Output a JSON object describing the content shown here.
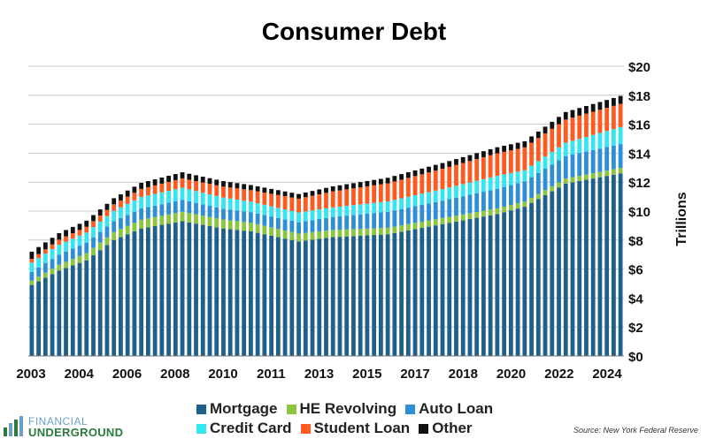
{
  "chart_data": {
    "type": "bar",
    "stacked": true,
    "title": "Consumer Debt",
    "ylabel": "Trillions",
    "ylim": [
      0,
      20
    ],
    "y_ticks": [
      "$0",
      "$2",
      "$4",
      "$6",
      "$8",
      "$10",
      "$12",
      "$14",
      "$16",
      "$18",
      "$20"
    ],
    "x_tick_labels": [
      "2003",
      "2004",
      "2006",
      "2008",
      "2010",
      "2011",
      "2013",
      "2015",
      "2017",
      "2018",
      "2020",
      "2022",
      "2024"
    ],
    "legend_position": "bottom",
    "anchors": [
      {
        "quarter": "2003Q1",
        "mortgage": 4.9,
        "he": 0.3,
        "auto": 0.6,
        "cc": 0.65,
        "student": 0.25,
        "other": 0.5
      },
      {
        "quarter": "2004Q1",
        "mortgage": 5.9,
        "he": 0.4,
        "auto": 0.7,
        "cc": 0.68,
        "student": 0.35,
        "other": 0.45
      },
      {
        "quarter": "2005Q1",
        "mortgage": 6.6,
        "he": 0.5,
        "auto": 0.72,
        "cc": 0.7,
        "student": 0.4,
        "other": 0.42
      },
      {
        "quarter": "2006Q1",
        "mortgage": 8.0,
        "he": 0.55,
        "auto": 0.75,
        "cc": 0.72,
        "student": 0.45,
        "other": 0.42
      },
      {
        "quarter": "2007Q1",
        "mortgage": 8.8,
        "he": 0.6,
        "auto": 0.78,
        "cc": 0.8,
        "student": 0.55,
        "other": 0.42
      },
      {
        "quarter": "2008Q3",
        "mortgage": 9.3,
        "he": 0.65,
        "auto": 0.82,
        "cc": 0.84,
        "student": 0.65,
        "other": 0.42
      },
      {
        "quarter": "2010Q1",
        "mortgage": 8.8,
        "he": 0.62,
        "auto": 0.74,
        "cc": 0.78,
        "student": 0.75,
        "other": 0.38
      },
      {
        "quarter": "2011Q1",
        "mortgage": 8.6,
        "he": 0.6,
        "auto": 0.73,
        "cc": 0.72,
        "student": 0.8,
        "other": 0.35
      },
      {
        "quarter": "2012Q4",
        "mortgage": 7.9,
        "he": 0.55,
        "auto": 0.78,
        "cc": 0.68,
        "student": 0.95,
        "other": 0.32
      },
      {
        "quarter": "2014Q1",
        "mortgage": 8.2,
        "he": 0.5,
        "auto": 0.9,
        "cc": 0.66,
        "student": 1.1,
        "other": 0.35
      },
      {
        "quarter": "2016Q1",
        "mortgage": 8.4,
        "he": 0.45,
        "auto": 1.1,
        "cc": 0.72,
        "student": 1.25,
        "other": 0.38
      },
      {
        "quarter": "2018Q1",
        "mortgage": 9.1,
        "he": 0.42,
        "auto": 1.2,
        "cc": 0.8,
        "student": 1.4,
        "other": 0.4
      },
      {
        "quarter": "2020Q1",
        "mortgage": 9.8,
        "he": 0.39,
        "auto": 1.35,
        "cc": 0.9,
        "student": 1.55,
        "other": 0.42
      },
      {
        "quarter": "2021Q1",
        "mortgage": 10.3,
        "he": 0.35,
        "auto": 1.4,
        "cc": 0.77,
        "student": 1.58,
        "other": 0.42
      },
      {
        "quarter": "2022Q3",
        "mortgage": 11.9,
        "he": 0.35,
        "auto": 1.55,
        "cc": 0.92,
        "student": 1.6,
        "other": 0.52
      },
      {
        "quarter": "2024Q3",
        "mortgage": 12.6,
        "he": 0.38,
        "auto": 1.65,
        "cc": 1.17,
        "student": 1.6,
        "other": 0.55
      }
    ],
    "series": [
      {
        "key": "mortgage",
        "name": "Mortgage",
        "color": "#1f5f8b"
      },
      {
        "key": "he",
        "name": "HE Revolving",
        "color": "#8cc63f"
      },
      {
        "key": "auto",
        "name": "Auto Loan",
        "color": "#2e8fd6"
      },
      {
        "key": "cc",
        "name": "Credit Card",
        "color": "#33e6f0"
      },
      {
        "key": "student",
        "name": "Student Loan",
        "color": "#ff5a1f"
      },
      {
        "key": "other",
        "name": "Other",
        "color": "#111111"
      }
    ]
  },
  "legend": {
    "mortgage": "Mortgage",
    "he": "HE Revolving",
    "auto": "Auto Loan",
    "cc": "Credit Card",
    "student": "Student Loan",
    "other": "Other"
  },
  "source_note": "Source: New York Federal Reserve",
  "logo": {
    "top": "FINANCIAL",
    "bottom": "UNDERGROUND"
  }
}
